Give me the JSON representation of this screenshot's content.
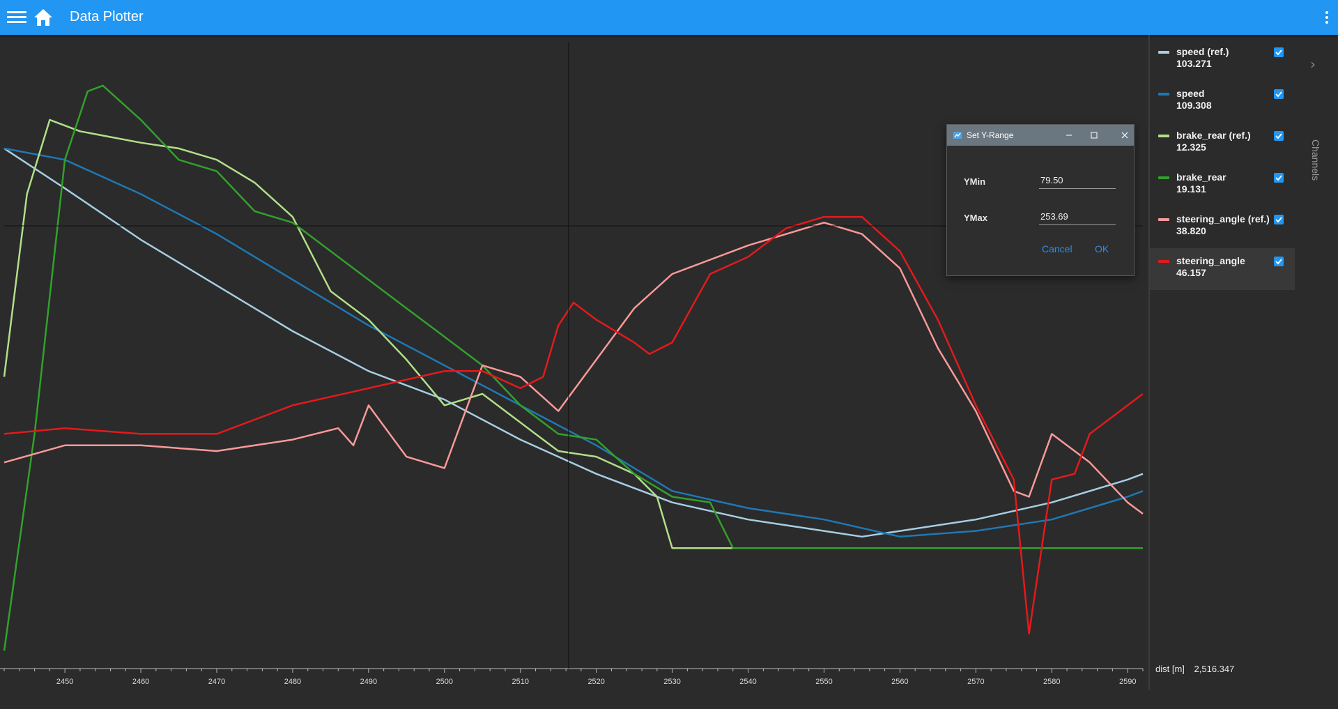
{
  "app": {
    "title": "Data Plotter"
  },
  "icons": {
    "menu": "hamburger-menu-icon",
    "home": "home-icon",
    "more": "more-vert-icon",
    "chevron": "chevron-right-icon"
  },
  "colors": {
    "appbar": "#2196f3",
    "background": "#2b2b2b",
    "accent": "#2196f3"
  },
  "channels_panel": {
    "tab_label": "Channels",
    "items": [
      {
        "name": "speed (ref.)",
        "value": "103.271",
        "color": "#a6cee3",
        "checked": true,
        "selected": false
      },
      {
        "name": "speed",
        "value": "109.308",
        "color": "#1f78b4",
        "checked": true,
        "selected": false
      },
      {
        "name": "brake_rear (ref.)",
        "value": "12.325",
        "color": "#b2df8a",
        "checked": true,
        "selected": false
      },
      {
        "name": "brake_rear",
        "value": "19.131",
        "color": "#33a02c",
        "checked": true,
        "selected": false
      },
      {
        "name": "steering_angle (ref.)",
        "value": "38.820",
        "color": "#fb9a99",
        "checked": true,
        "selected": false
      },
      {
        "name": "steering_angle",
        "value": "46.157",
        "color": "#e31a1c",
        "checked": true,
        "selected": true
      }
    ]
  },
  "readout": {
    "x_label": "dist [m]",
    "x_value": "2,516.347"
  },
  "dialog": {
    "title": "Set Y-Range",
    "ymin_label": "YMin",
    "ymin_value": "79.50",
    "ymax_label": "YMax",
    "ymax_value": "253.69",
    "cancel_label": "Cancel",
    "ok_label": "OK"
  },
  "chart_data": {
    "type": "line",
    "xlabel": "dist [m]",
    "xlim": [
      2442,
      2592
    ],
    "x_ticks": [
      2450,
      2460,
      2470,
      2480,
      2490,
      2500,
      2510,
      2520,
      2530,
      2540,
      2550,
      2560,
      2570,
      2580,
      2590
    ],
    "cursor_x": 2516.347,
    "grid": false,
    "legend": "right-panel",
    "series": [
      {
        "name": "speed (ref.)",
        "color": "#a6cee3",
        "x": [
          2442,
          2450,
          2460,
          2470,
          2480,
          2490,
          2500,
          2510,
          2515,
          2520,
          2530,
          2540,
          2550,
          2555,
          2560,
          2570,
          2580,
          2590,
          2592
        ],
        "y": [
          0.9,
          0.83,
          0.74,
          0.66,
          0.58,
          0.51,
          0.46,
          0.39,
          0.36,
          0.33,
          0.28,
          0.25,
          0.23,
          0.22,
          0.23,
          0.25,
          0.28,
          0.32,
          0.33
        ]
      },
      {
        "name": "speed",
        "color": "#1f78b4",
        "x": [
          2442,
          2450,
          2460,
          2470,
          2480,
          2490,
          2500,
          2510,
          2520,
          2530,
          2540,
          2550,
          2560,
          2570,
          2580,
          2590,
          2592
        ],
        "y": [
          0.9,
          0.88,
          0.82,
          0.75,
          0.67,
          0.59,
          0.52,
          0.45,
          0.38,
          0.3,
          0.27,
          0.25,
          0.22,
          0.23,
          0.25,
          0.29,
          0.3
        ]
      },
      {
        "name": "brake_rear (ref.)",
        "color": "#b2df8a",
        "x": [
          2442,
          2445,
          2448,
          2452,
          2456,
          2460,
          2465,
          2470,
          2475,
          2480,
          2485,
          2490,
          2495,
          2500,
          2505,
          2510,
          2515,
          2520,
          2525,
          2528,
          2530,
          2532,
          2540,
          2560,
          2580,
          2592
        ],
        "y": [
          0.5,
          0.82,
          0.95,
          0.93,
          0.92,
          0.91,
          0.9,
          0.88,
          0.84,
          0.78,
          0.65,
          0.6,
          0.53,
          0.45,
          0.47,
          0.42,
          0.37,
          0.36,
          0.33,
          0.29,
          0.2,
          0.2,
          0.2,
          0.2,
          0.2,
          0.2
        ]
      },
      {
        "name": "brake_rear",
        "color": "#33a02c",
        "x": [
          2442,
          2446,
          2450,
          2453,
          2455,
          2460,
          2465,
          2470,
          2475,
          2480,
          2485,
          2490,
          2495,
          2500,
          2505,
          2510,
          2515,
          2520,
          2525,
          2530,
          2535,
          2538,
          2540,
          2560,
          2580,
          2592
        ],
        "y": [
          0.02,
          0.4,
          0.88,
          1.0,
          1.01,
          0.95,
          0.88,
          0.86,
          0.79,
          0.77,
          0.72,
          0.67,
          0.62,
          0.57,
          0.52,
          0.45,
          0.4,
          0.39,
          0.33,
          0.29,
          0.28,
          0.2,
          0.2,
          0.2,
          0.2,
          0.2
        ]
      },
      {
        "name": "steering_angle (ref.)",
        "color": "#fb9a99",
        "x": [
          2442,
          2450,
          2460,
          2470,
          2480,
          2486,
          2488,
          2490,
          2495,
          2500,
          2505,
          2510,
          2515,
          2520,
          2525,
          2530,
          2540,
          2550,
          2555,
          2560,
          2565,
          2570,
          2575,
          2577,
          2580,
          2585,
          2590,
          2592
        ],
        "y": [
          0.35,
          0.38,
          0.38,
          0.37,
          0.39,
          0.41,
          0.38,
          0.45,
          0.36,
          0.34,
          0.52,
          0.5,
          0.44,
          0.53,
          0.62,
          0.68,
          0.73,
          0.77,
          0.75,
          0.69,
          0.55,
          0.44,
          0.3,
          0.29,
          0.4,
          0.35,
          0.28,
          0.26
        ]
      },
      {
        "name": "steering_angle",
        "color": "#e31a1c",
        "x": [
          2442,
          2450,
          2460,
          2470,
          2480,
          2490,
          2500,
          2505,
          2510,
          2513,
          2515,
          2517,
          2520,
          2525,
          2527,
          2530,
          2535,
          2540,
          2545,
          2550,
          2555,
          2560,
          2565,
          2570,
          2575,
          2577,
          2580,
          2583,
          2585,
          2590,
          2592
        ],
        "y": [
          0.4,
          0.41,
          0.4,
          0.4,
          0.45,
          0.48,
          0.51,
          0.51,
          0.48,
          0.5,
          0.59,
          0.63,
          0.6,
          0.56,
          0.54,
          0.56,
          0.68,
          0.71,
          0.76,
          0.78,
          0.78,
          0.72,
          0.6,
          0.45,
          0.32,
          0.05,
          0.32,
          0.33,
          0.4,
          0.45,
          0.47
        ]
      }
    ]
  }
}
